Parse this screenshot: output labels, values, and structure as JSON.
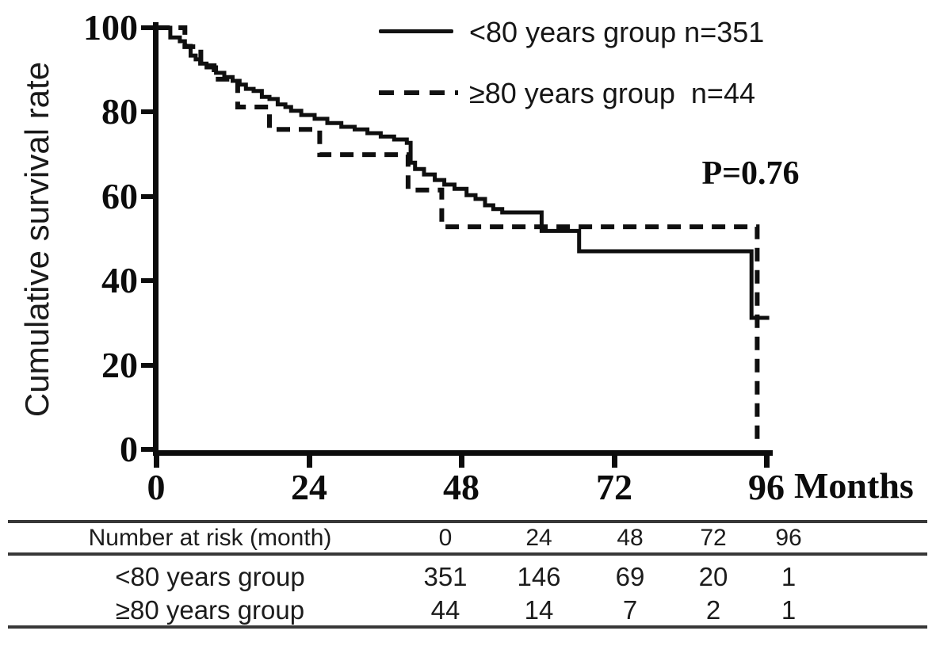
{
  "figure": {
    "x_unit_label": "Months",
    "p_value_label": "P=0.76"
  },
  "legend": {
    "items": [
      {
        "label": "<80 years group n=351",
        "style": "solid"
      },
      {
        "label": "≥80 years group  n=44",
        "style": "dashed"
      }
    ]
  },
  "chart_data": {
    "type": "line",
    "subtype": "kaplan-meier-step",
    "title": "",
    "xlabel": "Months",
    "ylabel": "Cumulative survival rate",
    "xlim": [
      0,
      96
    ],
    "ylim": [
      0,
      100
    ],
    "x_ticks": [
      0,
      24,
      48,
      72,
      96
    ],
    "y_ticks": [
      100,
      80,
      60,
      40,
      20,
      0
    ],
    "grid": false,
    "legend_position": "top-center",
    "annotations": [
      {
        "text": "P=0.76",
        "x_month": 88,
        "y_percent": 65
      }
    ],
    "series": [
      {
        "name": "<80 years group",
        "n": 351,
        "line_style": "solid",
        "color": "#0f0f0f",
        "steps_t_v": [
          [
            0,
            100
          ],
          [
            2.2,
            97.7
          ],
          [
            3.7,
            96.8
          ],
          [
            4.5,
            95.7
          ],
          [
            5.4,
            93.4
          ],
          [
            6.2,
            92.5
          ],
          [
            6.9,
            91.5
          ],
          [
            7.9,
            90.6
          ],
          [
            9.4,
            89.3
          ],
          [
            10.7,
            88.3
          ],
          [
            12.0,
            87.4
          ],
          [
            13.1,
            86.5
          ],
          [
            14.1,
            85.5
          ],
          [
            15.3,
            85.0
          ],
          [
            16.6,
            83.6
          ],
          [
            17.8,
            83.1
          ],
          [
            19.1,
            81.8
          ],
          [
            20.3,
            81.2
          ],
          [
            21.2,
            80.3
          ],
          [
            22.8,
            79.3
          ],
          [
            24.9,
            78.4
          ],
          [
            26.9,
            77.4
          ],
          [
            29.1,
            76.5
          ],
          [
            31.2,
            75.9
          ],
          [
            33.2,
            75.0
          ],
          [
            35.3,
            74.2
          ],
          [
            37.4,
            73.5
          ],
          [
            39.4,
            72.7
          ],
          [
            40.0,
            68.0
          ],
          [
            40.7,
            66.5
          ],
          [
            42.1,
            65.2
          ],
          [
            43.8,
            63.9
          ],
          [
            45.3,
            62.8
          ],
          [
            46.9,
            61.8
          ],
          [
            48.8,
            60.3
          ],
          [
            50.2,
            59.4
          ],
          [
            51.7,
            57.9
          ],
          [
            53.0,
            57.0
          ],
          [
            54.4,
            56.2
          ],
          [
            60.6,
            51.8
          ],
          [
            66.5,
            47.0
          ],
          [
            93.6,
            31.2
          ],
          [
            96.4,
            31.2
          ]
        ]
      },
      {
        "name": "≥80 years group",
        "n": 44,
        "line_style": "dashed",
        "color": "#0f0f0f",
        "steps_t_v": [
          [
            0,
            100
          ],
          [
            4.5,
            95.5
          ],
          [
            7.0,
            91.0
          ],
          [
            9.1,
            87.8
          ],
          [
            12.8,
            81.2
          ],
          [
            17.8,
            75.9
          ],
          [
            25.7,
            69.9
          ],
          [
            39.6,
            61.5
          ],
          [
            44.9,
            52.8
          ],
          [
            94.5,
            0.8
          ]
        ]
      }
    ]
  },
  "risk_table": {
    "title": "Number at risk (month)",
    "time_points": [
      "0",
      "24",
      "48",
      "72",
      "96"
    ],
    "rows": [
      {
        "label": "<80 years group",
        "values": [
          "351",
          "146",
          "69",
          "20",
          "1"
        ]
      },
      {
        "label": "≥80 years group",
        "values": [
          "44",
          "14",
          "7",
          "2",
          "1"
        ]
      }
    ]
  },
  "colors": {
    "curve": "#0f0f0f",
    "axis": "#0c0c0c",
    "table_line": "#383838",
    "text": "#141414",
    "background": "#ffffff"
  }
}
